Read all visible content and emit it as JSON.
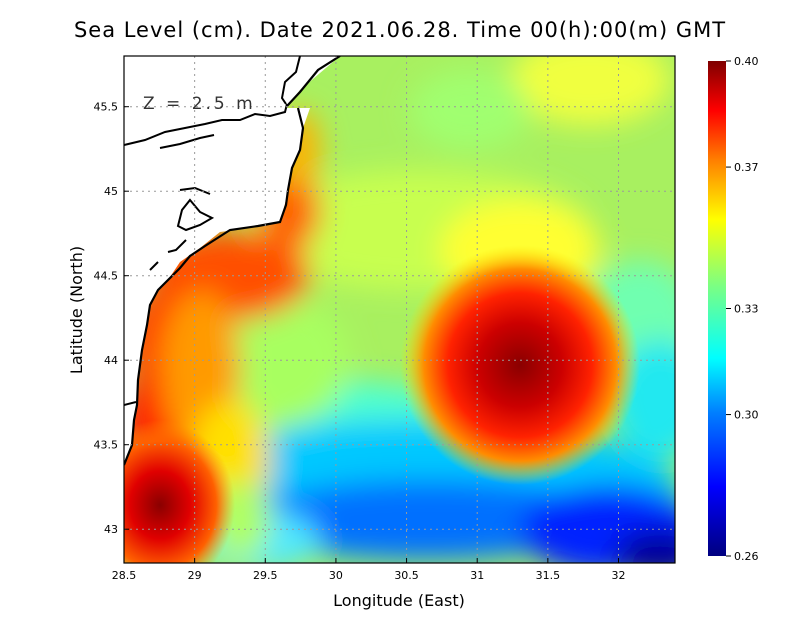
{
  "title": "Sea Level (cm). Date 2021.06.28. Time 00(h):00(m) GMT",
  "annotation": "Z = 2.5 m",
  "colors": {
    "land": "#ffffff",
    "coast": "#000000",
    "grid": "#9a9a9a",
    "scale": [
      "#00007f",
      "#0000ff",
      "#007fff",
      "#00ffff",
      "#7fff7f",
      "#ffff00",
      "#ff7f00",
      "#ff0000",
      "#7f0000"
    ]
  },
  "chart_data": {
    "type": "heatmap",
    "title": "Sea Level (cm). Date 2021.06.28. Time 00(h):00(m) GMT",
    "xlabel": "Longitude (East)",
    "ylabel": "Latitude (North)",
    "xlim": [
      28.5,
      32.4
    ],
    "ylim": [
      42.8,
      45.8
    ],
    "xticks": [
      "28.5",
      "29",
      "29.5",
      "30",
      "30.5",
      "31",
      "31.5",
      "32"
    ],
    "xtick_values": [
      28.5,
      29,
      29.5,
      30,
      30.5,
      31,
      31.5,
      32
    ],
    "yticks": [
      "43",
      "43.5",
      "44",
      "44.5",
      "45",
      "45.5"
    ],
    "ytick_values": [
      43,
      43.5,
      44,
      44.5,
      45,
      45.5
    ],
    "grid": true,
    "colorbar": {
      "min": 0.26,
      "max": 0.4,
      "tick_labels": [
        "0.40",
        "0.37",
        "0.33",
        "0.30",
        "0.26"
      ],
      "tick_values": [
        0.4,
        0.37,
        0.33,
        0.3,
        0.26
      ]
    },
    "features": [
      {
        "feature": "eddy-max",
        "lon": 31.3,
        "lat": 43.95,
        "value": 0.4
      },
      {
        "feature": "coastal-max",
        "lon": 28.65,
        "lat": 43.1,
        "value": 0.4
      },
      {
        "feature": "south-min",
        "lon": 32.3,
        "lat": 42.85,
        "value": 0.26
      }
    ]
  }
}
